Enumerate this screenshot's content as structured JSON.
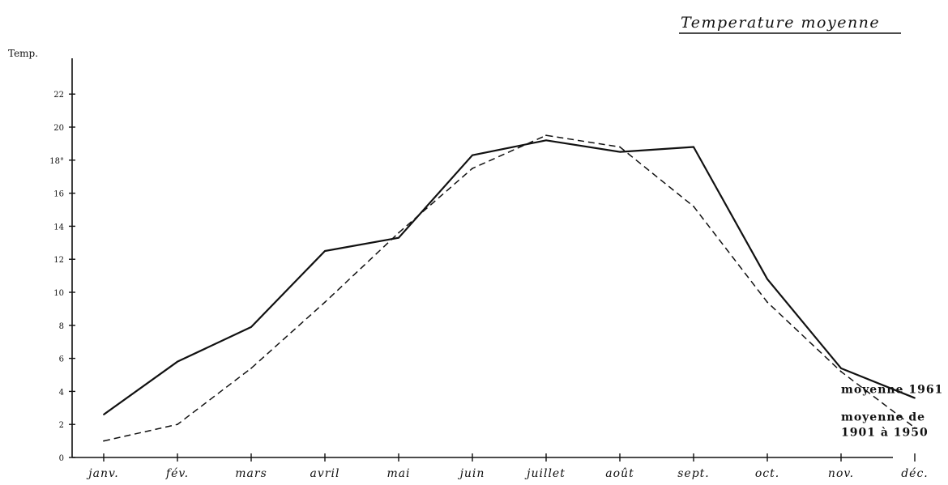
{
  "chart_data": {
    "type": "line",
    "title": "Temperature moyenne",
    "ylabel": "Temp.",
    "xlabel": "",
    "categories": [
      "janv.",
      "fév.",
      "mars",
      "avril",
      "mai",
      "juin",
      "juillet",
      "août",
      "sept.",
      "oct.",
      "nov.",
      "déc."
    ],
    "ylim": [
      0,
      23
    ],
    "yticks": [
      0,
      2,
      4,
      6,
      8,
      10,
      12,
      14,
      16,
      18,
      20,
      22
    ],
    "ytick_labels": [
      "0",
      "2",
      "4",
      "6",
      "8",
      "10",
      "12",
      "14",
      "16",
      "18°",
      "20",
      "22"
    ],
    "grid": false,
    "series": [
      {
        "name": "moyenne 1961",
        "style": "solid",
        "values": [
          2.6,
          5.8,
          7.9,
          12.5,
          13.3,
          18.3,
          19.2,
          18.5,
          18.8,
          10.8,
          5.4,
          3.6
        ]
      },
      {
        "name": "moyenne de 1901 à 1950",
        "style": "dashed",
        "values": [
          1.0,
          2.0,
          5.4,
          9.4,
          13.6,
          17.5,
          19.5,
          18.8,
          15.2,
          9.4,
          5.2,
          1.8
        ]
      }
    ],
    "legend_lines": [
      [
        "moyenne 1961"
      ],
      [
        "moyenne de",
        "1901 à 1950"
      ]
    ],
    "legend_placement": "right, at line ends",
    "line_color": "#111111"
  }
}
